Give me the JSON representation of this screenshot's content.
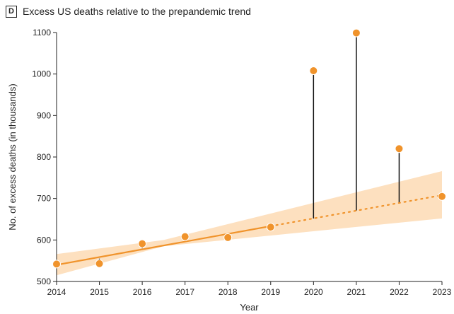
{
  "panel": {
    "badge": "D",
    "title": "Excess US deaths relative to the prepandemic trend"
  },
  "colors": {
    "accent": "#f0932b",
    "band": "#fde0bf",
    "stem": "#111111",
    "axis": "#222222"
  },
  "chart_data": {
    "type": "scatter",
    "title": "Excess US deaths relative to the prepandemic trend",
    "xlabel": "Year",
    "ylabel": "No. of excess deaths (in thousands)",
    "xlim": [
      2014,
      2023
    ],
    "ylim": [
      500,
      1100
    ],
    "xticks": [
      2014,
      2015,
      2016,
      2017,
      2018,
      2019,
      2020,
      2021,
      2022,
      2023
    ],
    "yticks": [
      500,
      600,
      700,
      800,
      900,
      1000,
      1100
    ],
    "grid": false,
    "points": [
      {
        "x": 2014,
        "y": 542
      },
      {
        "x": 2015,
        "y": 543
      },
      {
        "x": 2016,
        "y": 591
      },
      {
        "x": 2017,
        "y": 608
      },
      {
        "x": 2018,
        "y": 606
      },
      {
        "x": 2019,
        "y": 631
      },
      {
        "x": 2020,
        "y": 1008
      },
      {
        "x": 2021,
        "y": 1099
      },
      {
        "x": 2022,
        "y": 820
      },
      {
        "x": 2023,
        "y": 705
      }
    ],
    "trend": {
      "fit_range": [
        2014,
        2019
      ],
      "projection_range": [
        2019,
        2023
      ],
      "start": {
        "x": 2014,
        "y": 540
      },
      "end": {
        "x": 2023,
        "y": 708
      },
      "band": [
        {
          "x": 2014,
          "low": 515,
          "high": 566
        },
        {
          "x": 2016.5,
          "low": 585,
          "high": 600
        },
        {
          "x": 2023,
          "low": 652,
          "high": 766
        }
      ]
    },
    "excess_segments": [
      {
        "x": 2015,
        "observed": 543,
        "expected": 555
      },
      {
        "x": 2016,
        "observed": 591,
        "expected": 580
      },
      {
        "x": 2020,
        "observed": 1008,
        "expected": 652
      },
      {
        "x": 2021,
        "observed": 1099,
        "expected": 671
      },
      {
        "x": 2022,
        "observed": 820,
        "expected": 689
      }
    ]
  }
}
